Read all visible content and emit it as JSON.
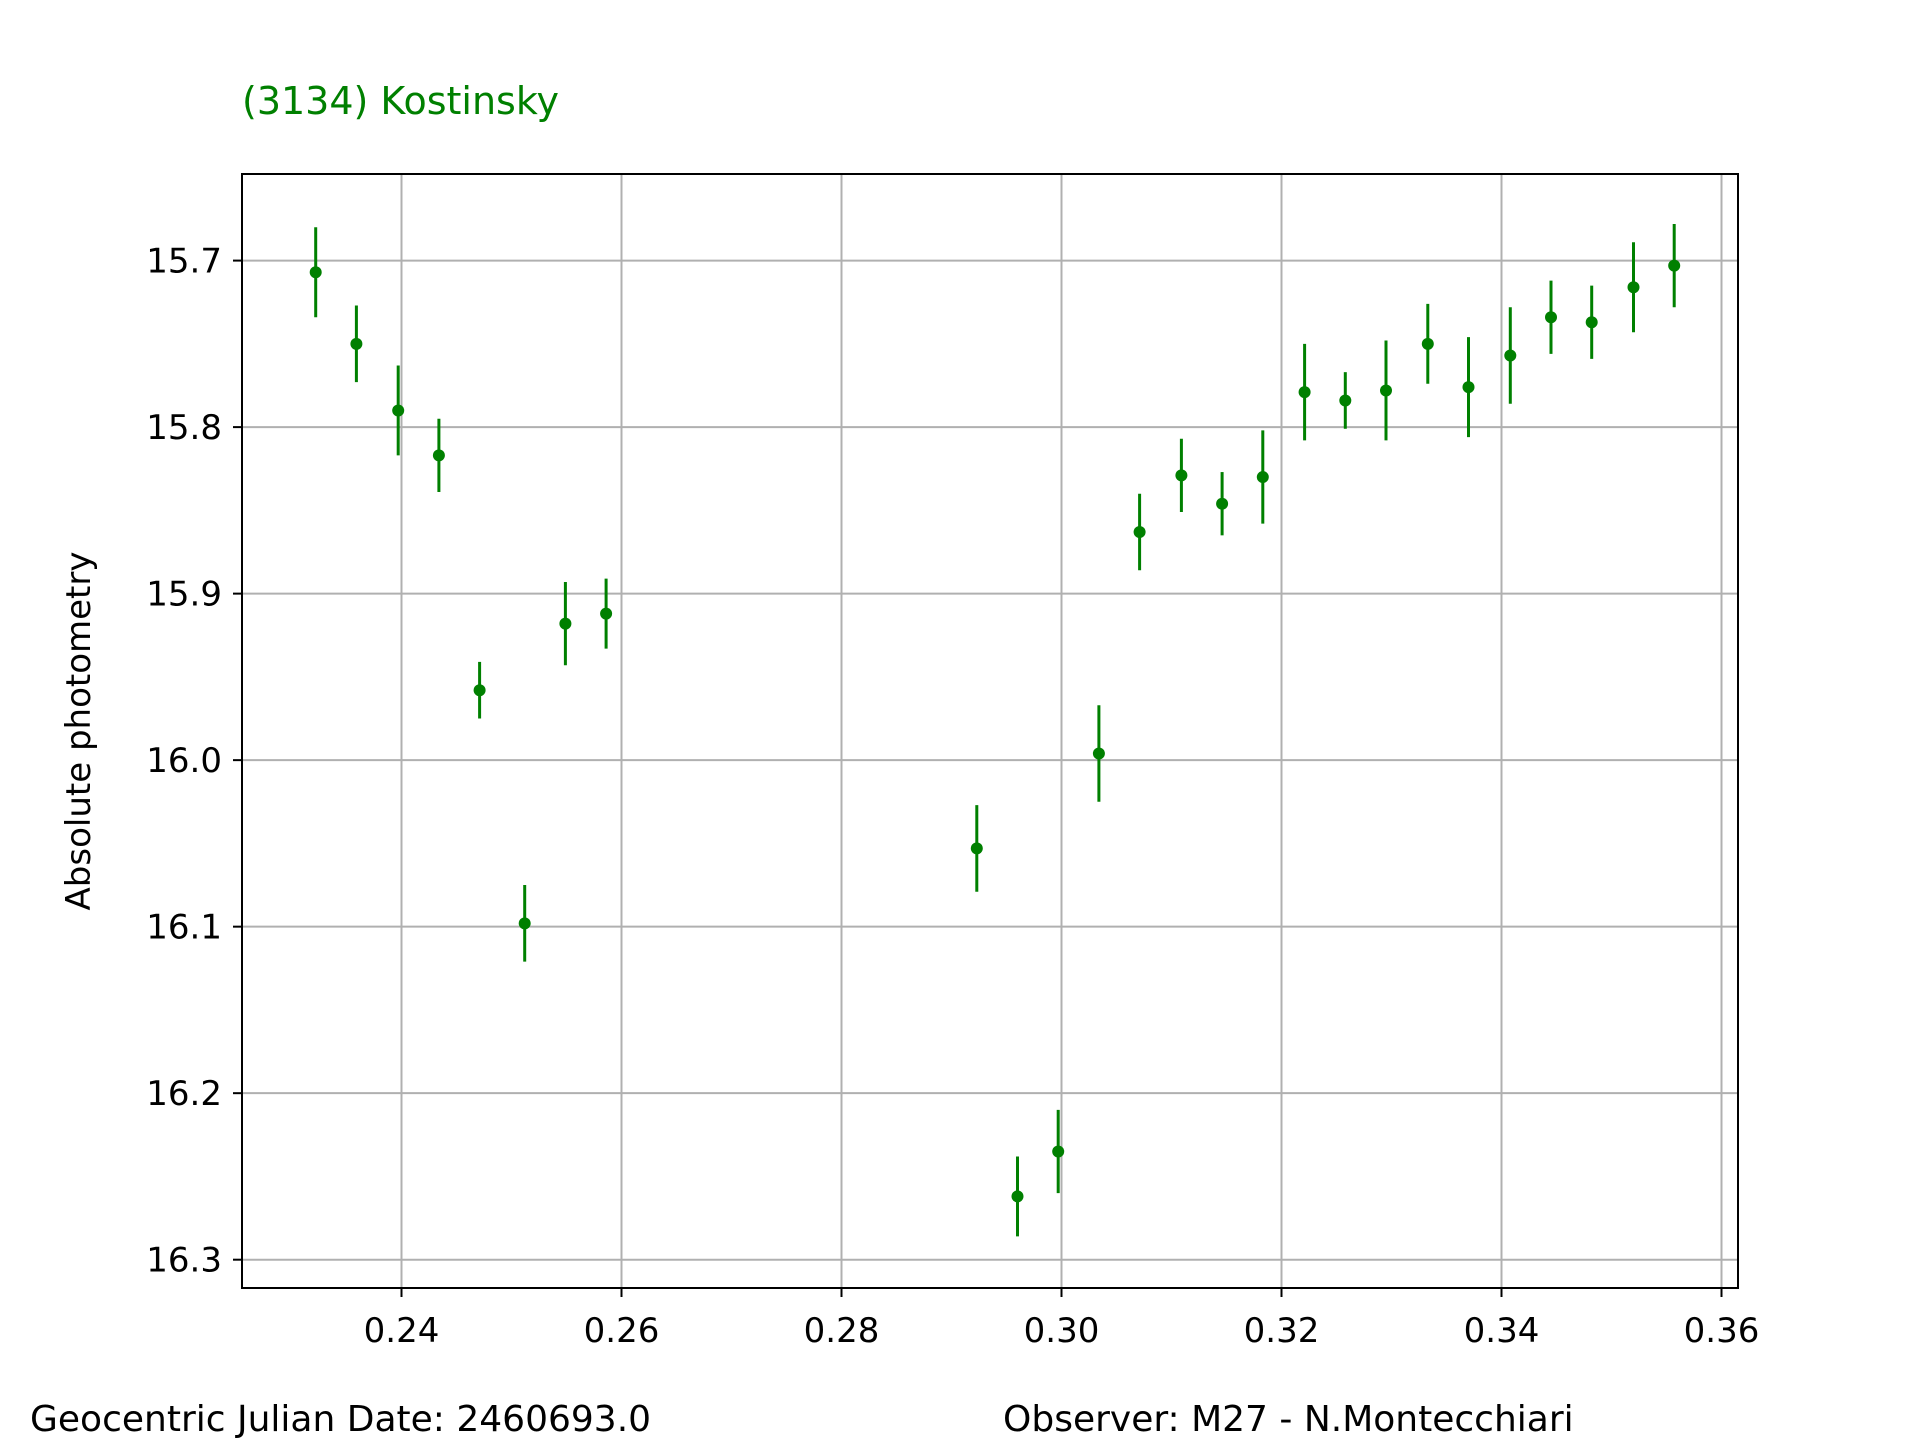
{
  "chart_data": {
    "type": "scatter",
    "title": "(3134) Kostinsky",
    "title_color": "#008000",
    "xlabel": "",
    "ylabel": "Absolute photometry",
    "xlim": [
      0.2255,
      0.3615
    ],
    "ylim": [
      16.317,
      15.648
    ],
    "y_inverted": true,
    "grid": true,
    "x_ticks": [
      "0.24",
      "0.26",
      "0.28",
      "0.30",
      "0.32",
      "0.34",
      "0.36"
    ],
    "y_ticks": [
      "15.7",
      "15.8",
      "15.9",
      "16.0",
      "16.1",
      "16.2",
      "16.3"
    ],
    "marker_color": "#008000",
    "series": [
      {
        "points": [
          {
            "x": 0.2322,
            "y": 15.707,
            "err": 0.027
          },
          {
            "x": 0.2359,
            "y": 15.75,
            "err": 0.023
          },
          {
            "x": 0.2397,
            "y": 15.79,
            "err": 0.027
          },
          {
            "x": 0.2434,
            "y": 15.817,
            "err": 0.022
          },
          {
            "x": 0.2471,
            "y": 15.958,
            "err": 0.017
          },
          {
            "x": 0.2512,
            "y": 16.098,
            "err": 0.023
          },
          {
            "x": 0.2549,
            "y": 15.918,
            "err": 0.025
          },
          {
            "x": 0.2586,
            "y": 15.912,
            "err": 0.021
          },
          {
            "x": 0.2923,
            "y": 16.053,
            "err": 0.026
          },
          {
            "x": 0.296,
            "y": 16.262,
            "err": 0.024
          },
          {
            "x": 0.2997,
            "y": 16.235,
            "err": 0.025
          },
          {
            "x": 0.3034,
            "y": 15.996,
            "err": 0.029
          },
          {
            "x": 0.3071,
            "y": 15.863,
            "err": 0.023
          },
          {
            "x": 0.3109,
            "y": 15.829,
            "err": 0.022
          },
          {
            "x": 0.3146,
            "y": 15.846,
            "err": 0.019
          },
          {
            "x": 0.3183,
            "y": 15.83,
            "err": 0.028
          },
          {
            "x": 0.3221,
            "y": 15.779,
            "err": 0.029
          },
          {
            "x": 0.3258,
            "y": 15.784,
            "err": 0.017
          },
          {
            "x": 0.3295,
            "y": 15.778,
            "err": 0.03
          },
          {
            "x": 0.3333,
            "y": 15.75,
            "err": 0.024
          },
          {
            "x": 0.337,
            "y": 15.776,
            "err": 0.03
          },
          {
            "x": 0.3408,
            "y": 15.757,
            "err": 0.029
          },
          {
            "x": 0.3445,
            "y": 15.734,
            "err": 0.022
          },
          {
            "x": 0.3482,
            "y": 15.737,
            "err": 0.022
          },
          {
            "x": 0.352,
            "y": 15.716,
            "err": 0.027
          },
          {
            "x": 0.3557,
            "y": 15.703,
            "err": 0.025
          }
        ]
      }
    ]
  },
  "footer": {
    "date_label": "Geocentric Julian Date: 2460693.0",
    "observer_label": "Observer: M27 - N.Montecchiari"
  }
}
